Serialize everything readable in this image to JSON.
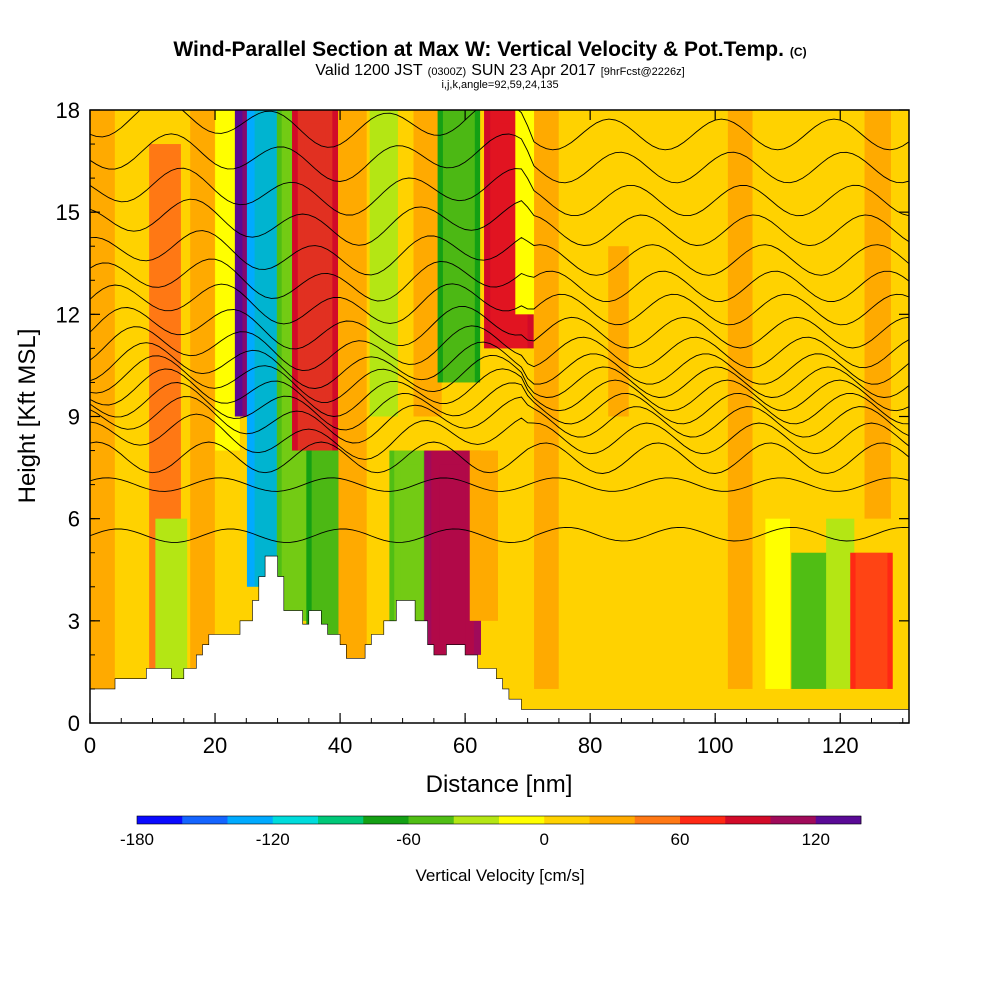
{
  "chart_data": {
    "type": "heatmap",
    "title": "Wind-Parallel Section at Max W: Vertical Velocity & Pot.Temp.",
    "title_mark": "(C)",
    "subtitle_valid": "Valid 1200 JST",
    "subtitle_utc": "(0300Z)",
    "subtitle_date": "SUN 23 Apr 2017",
    "subtitle_fcst": "[9hrFcst@2226z]",
    "subtitle_ijk": "i,j,k,angle=92,59,24,135",
    "xlabel": "Distance [nm]",
    "ylabel": "Height [Kft MSL]",
    "xlim": [
      0,
      131
    ],
    "ylim": [
      0,
      18
    ],
    "x_ticks": [
      0,
      20,
      40,
      60,
      80,
      100,
      120
    ],
    "y_ticks": [
      0,
      3,
      6,
      9,
      12,
      15,
      18
    ],
    "colorbar": {
      "label": "Vertical Velocity [cm/s]",
      "min": -180,
      "max": 140,
      "step": 20,
      "tick_values": [
        -180,
        -120,
        -60,
        0,
        60,
        120
      ],
      "colors": [
        "#0a0aff",
        "#1464ff",
        "#00aaff",
        "#00dcdc",
        "#00c878",
        "#14a014",
        "#50be14",
        "#b4e614",
        "#ffff00",
        "#ffd200",
        "#ffaa00",
        "#ff7814",
        "#ff2814",
        "#d20a28",
        "#a00a5a",
        "#5a0a96"
      ]
    },
    "vertical_velocity_columns": [
      {
        "x": 2,
        "w": 20,
        "y0": 0,
        "y1": 18
      },
      {
        "x": 12,
        "w": 40,
        "y0": 1,
        "y1": 17
      },
      {
        "x": 13,
        "w": -40,
        "y0": 1,
        "y1": 6
      },
      {
        "x": 18,
        "w": 20,
        "y0": 1,
        "y1": 18
      },
      {
        "x": 22,
        "w": -20,
        "y0": 8,
        "y1": 18
      },
      {
        "x": 28,
        "w": 120,
        "y0": 9,
        "y1": 18
      },
      {
        "x": 30,
        "w": -130,
        "y0": 4,
        "y1": 18
      },
      {
        "x": 33,
        "w": -60,
        "y0": 3,
        "y1": 18
      },
      {
        "x": 36,
        "w": 80,
        "y0": 8,
        "y1": 18
      },
      {
        "x": 38,
        "w": -70,
        "y0": 2,
        "y1": 8
      },
      {
        "x": 42,
        "w": 30,
        "y0": 1,
        "y1": 18
      },
      {
        "x": 47,
        "w": -30,
        "y0": 9,
        "y1": 18
      },
      {
        "x": 51,
        "w": -60,
        "y0": 3,
        "y1": 8
      },
      {
        "x": 54,
        "w": 30,
        "y0": 9,
        "y1": 18
      },
      {
        "x": 58,
        "w": 110,
        "y0": 2,
        "y1": 8
      },
      {
        "x": 59,
        "w": -70,
        "y0": 10,
        "y1": 18
      },
      {
        "x": 63,
        "w": 30,
        "y0": 3,
        "y1": 8
      },
      {
        "x": 67,
        "w": 90,
        "y0": 11,
        "y1": 18
      },
      {
        "x": 70,
        "w": -20,
        "y0": 12,
        "y1": 18
      },
      {
        "x": 73,
        "w": 20,
        "y0": 1,
        "y1": 18
      },
      {
        "x": 85,
        "w": 25,
        "y0": 9,
        "y1": 14
      },
      {
        "x": 88,
        "w": 15,
        "y0": 1,
        "y1": 18
      },
      {
        "x": 104,
        "w": 20,
        "y0": 1,
        "y1": 18
      },
      {
        "x": 110,
        "w": -20,
        "y0": 1,
        "y1": 6
      },
      {
        "x": 115,
        "w": -50,
        "y0": 1,
        "y1": 5
      },
      {
        "x": 120,
        "w": -30,
        "y0": 1,
        "y1": 6
      },
      {
        "x": 125,
        "w": 70,
        "y0": 1,
        "y1": 5
      },
      {
        "x": 126,
        "w": 25,
        "y0": 6,
        "y1": 18
      }
    ],
    "terrain": [
      [
        0,
        1
      ],
      [
        4,
        1
      ],
      [
        4,
        1.3
      ],
      [
        9,
        1.3
      ],
      [
        9,
        1.6
      ],
      [
        13,
        1.6
      ],
      [
        13,
        1.3
      ],
      [
        15,
        1.3
      ],
      [
        15,
        1.6
      ],
      [
        17,
        1.6
      ],
      [
        17,
        2
      ],
      [
        18,
        2
      ],
      [
        18,
        2.3
      ],
      [
        19,
        2.3
      ],
      [
        19,
        2.6
      ],
      [
        24,
        2.6
      ],
      [
        24,
        3
      ],
      [
        26,
        3
      ],
      [
        26,
        3.6
      ],
      [
        27,
        3.6
      ],
      [
        27,
        4.3
      ],
      [
        28,
        4.3
      ],
      [
        28,
        4.9
      ],
      [
        30,
        4.9
      ],
      [
        30,
        4.3
      ],
      [
        31,
        4.3
      ],
      [
        31,
        3.3
      ],
      [
        34,
        3.3
      ],
      [
        34,
        2.9
      ],
      [
        35,
        2.9
      ],
      [
        35,
        3.3
      ],
      [
        37,
        3.3
      ],
      [
        37,
        2.9
      ],
      [
        38,
        2.9
      ],
      [
        38,
        2.6
      ],
      [
        40,
        2.6
      ],
      [
        40,
        2.3
      ],
      [
        41,
        2.3
      ],
      [
        41,
        1.9
      ],
      [
        44,
        1.9
      ],
      [
        44,
        2.3
      ],
      [
        45,
        2.3
      ],
      [
        45,
        2.6
      ],
      [
        47,
        2.6
      ],
      [
        47,
        3
      ],
      [
        49,
        3
      ],
      [
        49,
        3.6
      ],
      [
        52,
        3.6
      ],
      [
        52,
        3
      ],
      [
        54,
        3
      ],
      [
        54,
        2.3
      ],
      [
        55,
        2.3
      ],
      [
        55,
        2
      ],
      [
        57,
        2
      ],
      [
        57,
        2.3
      ],
      [
        60,
        2.3
      ],
      [
        60,
        2
      ],
      [
        62,
        2
      ],
      [
        62,
        1.6
      ],
      [
        65,
        1.6
      ],
      [
        65,
        1.3
      ],
      [
        66,
        1.3
      ],
      [
        66,
        1
      ],
      [
        67,
        1
      ],
      [
        67,
        0.7
      ],
      [
        69,
        0.7
      ],
      [
        69,
        0.4
      ],
      [
        131,
        0.4
      ]
    ],
    "theta_levels": [
      [
        0,
        5.5
      ],
      [
        0,
        7.0
      ],
      [
        0,
        7.8
      ],
      [
        0,
        8.4
      ],
      [
        0,
        8.9
      ],
      [
        0,
        9.3
      ],
      [
        0,
        9.7
      ],
      [
        0,
        10.1
      ],
      [
        0,
        10.5
      ],
      [
        0,
        11.0
      ],
      [
        0,
        11.6
      ],
      [
        0,
        12.3
      ],
      [
        0,
        13.0
      ],
      [
        0,
        13.8
      ],
      [
        0,
        14.7
      ],
      [
        0,
        15.6
      ],
      [
        0,
        16.6
      ],
      [
        0,
        17.6
      ]
    ]
  }
}
